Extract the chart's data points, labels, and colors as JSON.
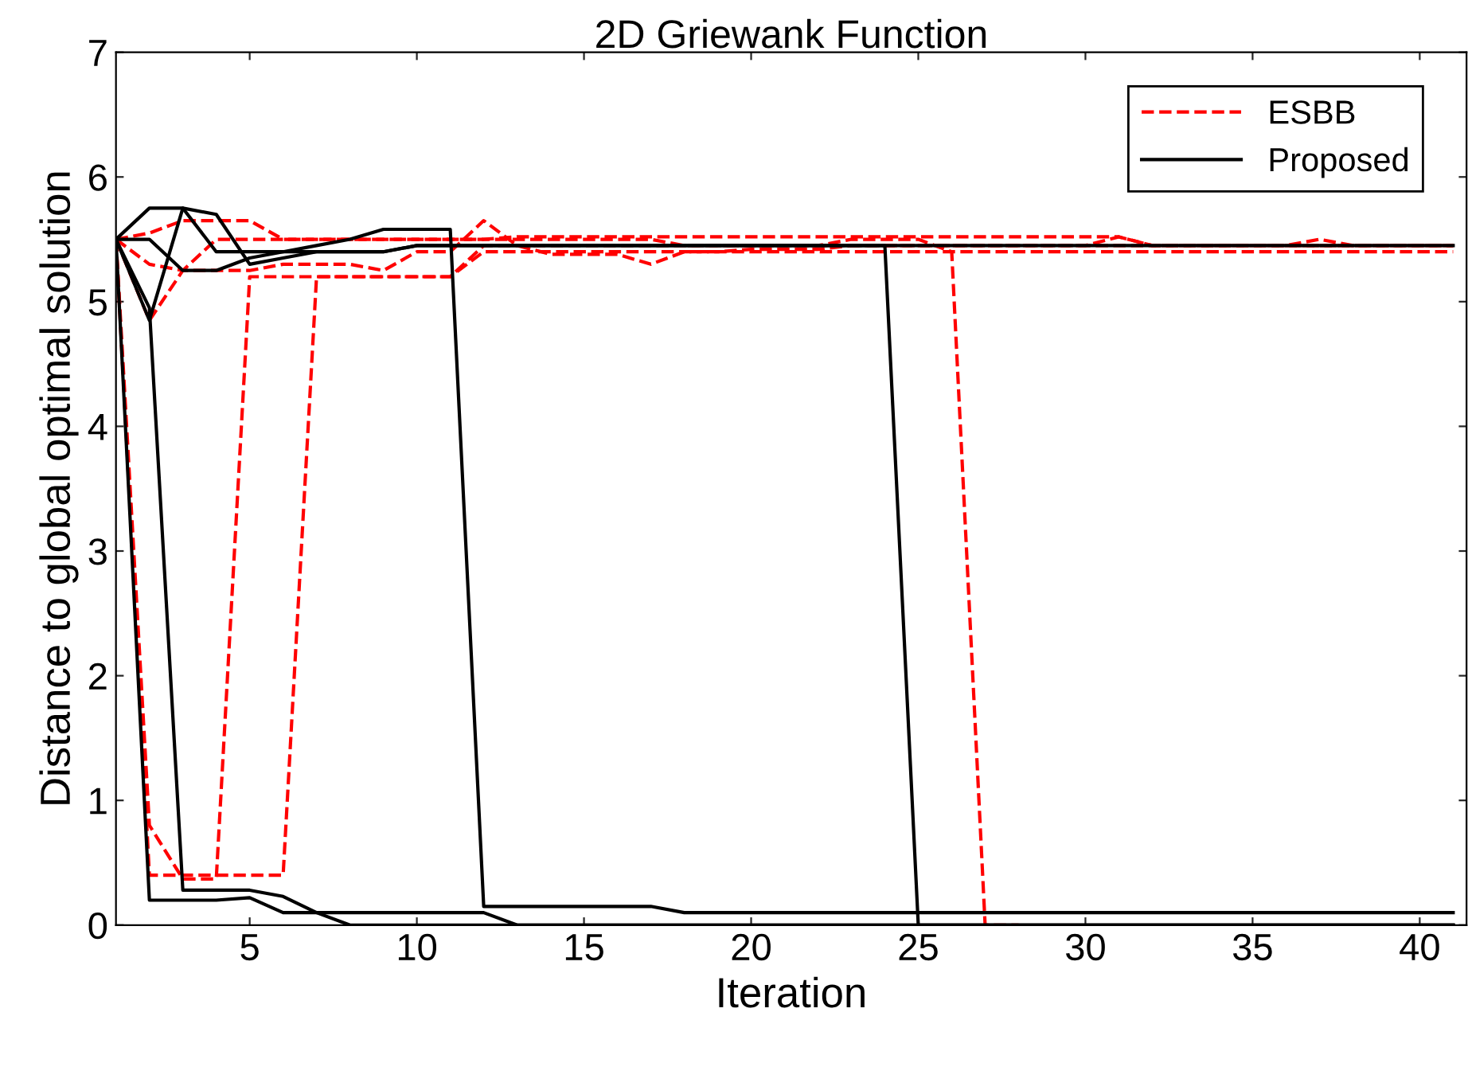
{
  "chart_data": {
    "type": "line",
    "title": "2D Griewank Function",
    "xlabel": "Iteration",
    "ylabel": "Distance to global optimal solution",
    "x": [
      1,
      2,
      3,
      4,
      5,
      6,
      7,
      8,
      9,
      10,
      11,
      12,
      13,
      14,
      15,
      16,
      17,
      18,
      19,
      20,
      21,
      22,
      23,
      24,
      25,
      26,
      27,
      28,
      29,
      30,
      31,
      32,
      33,
      34,
      35,
      36,
      37,
      38,
      39,
      40,
      41
    ],
    "xlim": [
      1,
      41.4
    ],
    "ylim": [
      0,
      7
    ],
    "xticks": [
      5,
      10,
      15,
      20,
      25,
      30,
      35,
      40
    ],
    "yticks": [
      0,
      1,
      2,
      3,
      4,
      5,
      6,
      7
    ],
    "legend": "top right",
    "grid": false,
    "series": [
      {
        "name": "ESBB",
        "color": "#ff0000",
        "line_style": "dashed",
        "values": [
          5.5,
          0.4,
          0.4,
          0.4,
          0.4,
          0.4,
          5.2,
          5.2,
          5.2,
          5.2,
          5.2,
          5.4,
          5.4,
          5.4,
          5.4,
          5.4,
          5.4,
          5.4,
          5.4,
          5.4,
          5.4,
          5.4,
          5.4,
          5.4,
          5.4,
          5.4,
          5.4,
          5.4,
          5.4,
          5.4,
          5.4,
          5.4,
          5.4,
          5.4,
          5.4,
          5.4,
          5.4,
          5.4,
          5.4,
          5.4,
          5.4
        ]
      },
      {
        "color": "#ff0000",
        "line_style": "dashed",
        "values": [
          5.5,
          0.8,
          0.37,
          0.37,
          5.2,
          5.2,
          5.2,
          5.2,
          5.2,
          5.2,
          5.2,
          5.45,
          5.45,
          5.45,
          5.45,
          5.45,
          5.45,
          5.45,
          5.45,
          5.45,
          5.45,
          5.45,
          5.45,
          5.45,
          5.45,
          5.45,
          5.45,
          5.45,
          5.45,
          5.45,
          5.45,
          5.45,
          5.45,
          5.45,
          5.45,
          5.45,
          5.5,
          5.45,
          5.45,
          5.45,
          5.45
        ]
      },
      {
        "color": "#ff0000",
        "line_style": "dashed",
        "values": [
          5.5,
          5.55,
          5.65,
          5.65,
          5.65,
          5.5,
          5.5,
          5.5,
          5.5,
          5.5,
          5.5,
          5.5,
          5.5,
          5.5,
          5.5,
          5.5,
          5.5,
          5.45,
          5.45,
          5.45,
          5.45,
          5.45,
          5.5,
          5.5,
          5.5,
          5.4,
          0,
          0,
          null,
          null,
          null,
          null,
          null,
          null,
          null,
          null,
          null,
          null,
          null,
          null,
          null
        ]
      },
      {
        "color": "#ff0000",
        "line_style": "dashed",
        "values": [
          5.5,
          4.85,
          5.25,
          5.25,
          5.25,
          5.3,
          5.3,
          5.3,
          5.25,
          5.4,
          5.4,
          5.65,
          5.45,
          5.38,
          5.38,
          5.38,
          5.3,
          5.4,
          5.4,
          5.42,
          5.42,
          5.42,
          5.45,
          5.45,
          5.45,
          5.45,
          5.45,
          5.45,
          5.45,
          5.45,
          5.52,
          5.45,
          5.45,
          5.45,
          5.45,
          5.45,
          5.45,
          5.45,
          5.45,
          5.45,
          5.45
        ]
      },
      {
        "color": "#ff0000",
        "line_style": "dashed",
        "values": [
          5.5,
          5.3,
          5.25,
          5.5,
          5.5,
          5.5,
          5.5,
          5.5,
          5.5,
          5.5,
          5.5,
          5.5,
          5.52,
          5.52,
          5.52,
          5.52,
          5.52,
          5.52,
          5.52,
          5.52,
          5.52,
          5.52,
          5.52,
          5.52,
          5.52,
          5.52,
          5.52,
          5.52,
          5.52,
          5.52,
          5.52,
          5.45,
          5.45,
          5.45,
          5.45,
          5.45,
          5.45,
          5.45,
          5.45,
          5.45,
          5.45
        ]
      },
      {
        "name": "Proposed",
        "color": "#000000",
        "line_style": "solid",
        "values": [
          5.5,
          0.2,
          0.2,
          0.2,
          0.22,
          0.1,
          0.1,
          0.1,
          0.1,
          0.1,
          0.1,
          0.1,
          0,
          0,
          0,
          0,
          0,
          0,
          0,
          0,
          0,
          0,
          0,
          0,
          0,
          0,
          0,
          0,
          0,
          0,
          0,
          0,
          0,
          0,
          0,
          0,
          0,
          0,
          0,
          0,
          0
        ]
      },
      {
        "color": "#000000",
        "line_style": "solid",
        "values": [
          5.5,
          4.95,
          0.28,
          0.28,
          0.28,
          0.23,
          0.1,
          0,
          0,
          0,
          0,
          0,
          0,
          0,
          0,
          0,
          0,
          0,
          0,
          0,
          0,
          0,
          0,
          0,
          0,
          0,
          0,
          0,
          0,
          0,
          0,
          0,
          0,
          0,
          0,
          0,
          0,
          0,
          0,
          0,
          0
        ]
      },
      {
        "color": "#000000",
        "line_style": "solid",
        "values": [
          5.5,
          5.75,
          5.75,
          5.4,
          5.4,
          5.4,
          5.45,
          5.5,
          5.58,
          5.58,
          5.58,
          0.15,
          0.15,
          0.15,
          0.15,
          0.15,
          0.15,
          0.1,
          0.1,
          0.1,
          0.1,
          0.1,
          0.1,
          0.1,
          0.1,
          0.1,
          0.1,
          0.1,
          0.1,
          0.1,
          0.1,
          0.1,
          0.1,
          0.1,
          0.1,
          0.1,
          0.1,
          0.1,
          0.1,
          0.1,
          0.1
        ]
      },
      {
        "color": "#000000",
        "line_style": "solid",
        "values": [
          5.5,
          5.5,
          5.25,
          5.25,
          5.35,
          5.4,
          5.4,
          5.4,
          5.4,
          5.45,
          5.45,
          5.45,
          5.45,
          5.45,
          5.45,
          5.45,
          5.45,
          5.45,
          5.45,
          5.45,
          5.45,
          5.45,
          5.45,
          5.45,
          0,
          0,
          0,
          0,
          0,
          0,
          0,
          0,
          0,
          0,
          0,
          0,
          0,
          0,
          0,
          0,
          0
        ]
      },
      {
        "color": "#000000",
        "line_style": "solid",
        "values": [
          5.5,
          4.85,
          5.75,
          5.7,
          5.3,
          5.35,
          5.4,
          5.4,
          5.4,
          5.45,
          5.45,
          5.45,
          5.45,
          5.45,
          5.45,
          5.45,
          5.45,
          5.45,
          5.45,
          5.45,
          5.45,
          5.45,
          5.45,
          5.45,
          5.45,
          5.45,
          5.45,
          5.45,
          5.45,
          5.45,
          5.45,
          5.45,
          5.45,
          5.45,
          5.45,
          5.45,
          5.45,
          5.45,
          5.45,
          5.45,
          5.45
        ]
      }
    ]
  }
}
